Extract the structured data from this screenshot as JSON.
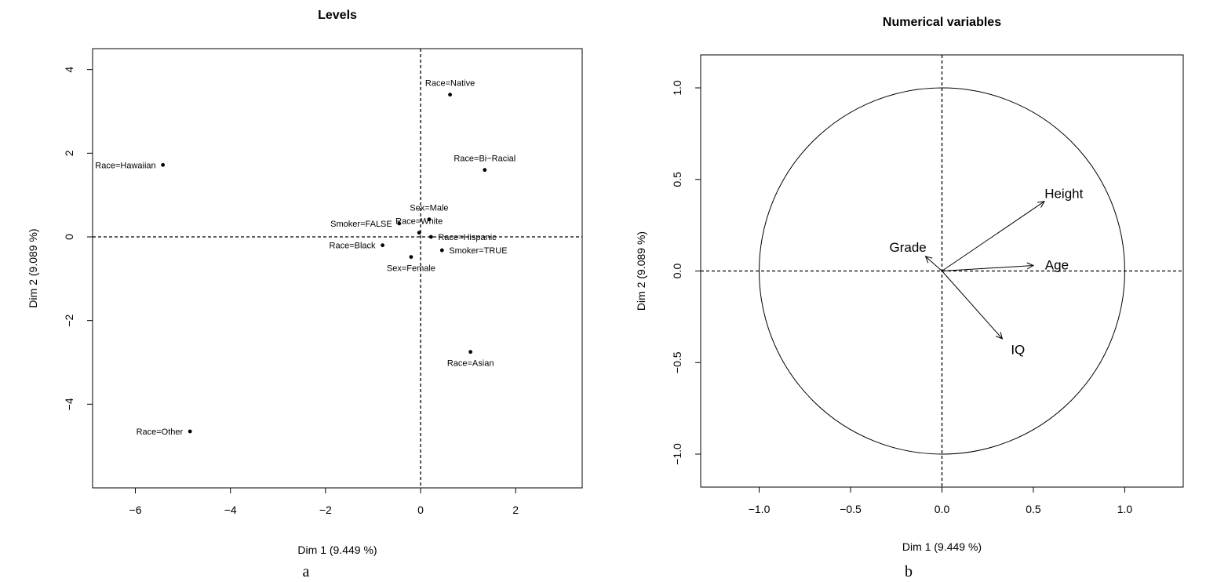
{
  "chart_data": [
    {
      "type": "scatter",
      "title": "Levels",
      "xlabel": "Dim 1 (9.449 %)",
      "ylabel": "Dim 2 (9.089 %)",
      "panel_label": "a",
      "xlim": [
        -6.9,
        3.4
      ],
      "ylim": [
        -6.0,
        4.5
      ],
      "xticks": [
        -6,
        -4,
        -2,
        0,
        2
      ],
      "yticks": [
        -4,
        -2,
        0,
        2,
        4
      ],
      "tick_labels_x": [
        "−6",
        "−4",
        "−2",
        "0",
        "2"
      ],
      "tick_labels_y": [
        "−4",
        "−2",
        "0",
        "2",
        "4"
      ],
      "reference_lines": {
        "x": 0,
        "y": 0,
        "style": "dashed"
      },
      "points": [
        {
          "label": "Race=Native",
          "x": 0.62,
          "y": 3.4,
          "label_pos": "above"
        },
        {
          "label": "Race=Bi−Racial",
          "x": 1.35,
          "y": 1.6,
          "label_pos": "above"
        },
        {
          "label": "Race=Hawaiian",
          "x": -5.42,
          "y": 1.72,
          "label_pos": "left"
        },
        {
          "label": "Sex=Male",
          "x": 0.18,
          "y": 0.42,
          "label_pos": "above"
        },
        {
          "label": "Race=White",
          "x": -0.03,
          "y": 0.1,
          "label_pos": "above"
        },
        {
          "label": "Smoker=FALSE",
          "x": -0.45,
          "y": 0.32,
          "label_pos": "left"
        },
        {
          "label": "Race=Hispanic",
          "x": 0.22,
          "y": 0.0,
          "label_pos": "right"
        },
        {
          "label": "Race=Black",
          "x": -0.8,
          "y": -0.2,
          "label_pos": "left"
        },
        {
          "label": "Smoker=TRUE",
          "x": 0.45,
          "y": -0.32,
          "label_pos": "right"
        },
        {
          "label": "Sex=Female",
          "x": -0.2,
          "y": -0.48,
          "label_pos": "below"
        },
        {
          "label": "Race=Asian",
          "x": 1.05,
          "y": -2.75,
          "label_pos": "below"
        },
        {
          "label": "Race=Other",
          "x": -4.85,
          "y": -4.65,
          "label_pos": "left"
        }
      ]
    },
    {
      "type": "scatter",
      "title": "Numerical variables",
      "xlabel": "Dim 1 (9.449 %)",
      "ylabel": "Dim 2 (9.089 %)",
      "panel_label": "b",
      "xlim": [
        -1.32,
        1.32
      ],
      "ylim": [
        -1.18,
        1.18
      ],
      "xticks": [
        -1.0,
        -0.5,
        0.0,
        0.5,
        1.0
      ],
      "yticks": [
        -1.0,
        -0.5,
        0.0,
        0.5,
        1.0
      ],
      "tick_labels_x": [
        "−1.0",
        "−0.5",
        "0.0",
        "0.5",
        "1.0"
      ],
      "tick_labels_y": [
        "−1.0",
        "−0.5",
        "0.0",
        "0.5",
        "1.0"
      ],
      "reference_lines": {
        "x": 0,
        "y": 0,
        "style": "dashed"
      },
      "circle_radius": 1.0,
      "arrows": [
        {
          "label": "Height",
          "x": 0.56,
          "y": 0.38
        },
        {
          "label": "Age",
          "x": 0.5,
          "y": 0.03
        },
        {
          "label": "Grade",
          "x": -0.09,
          "y": 0.08
        },
        {
          "label": "IQ",
          "x": 0.33,
          "y": -0.37
        }
      ]
    }
  ]
}
